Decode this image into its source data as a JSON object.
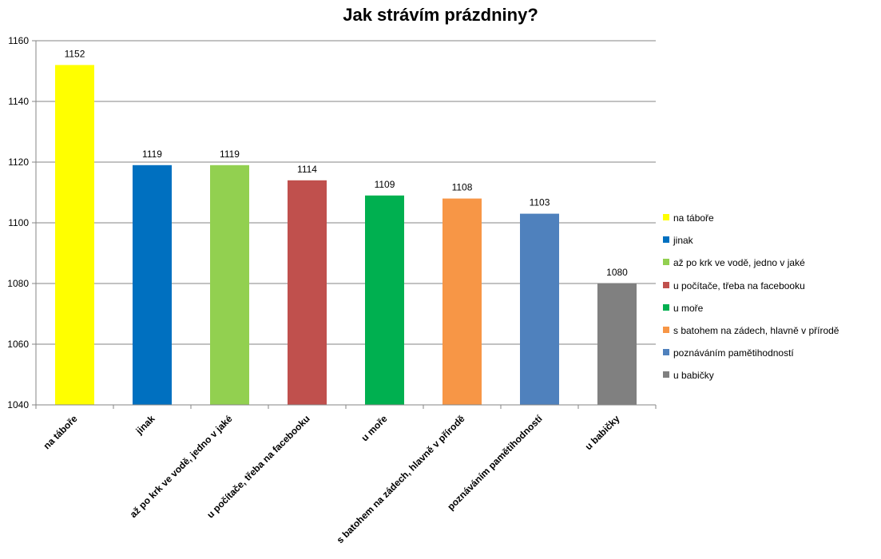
{
  "chart_data": {
    "type": "bar",
    "title": "Jak strávím prázdniny?",
    "xlabel": "",
    "ylabel": "",
    "ylim": [
      1040,
      1160
    ],
    "yticks": [
      1040,
      1060,
      1080,
      1100,
      1120,
      1140,
      1160
    ],
    "grid": true,
    "legend_position": "right",
    "categories": [
      "na táboře",
      "jinak",
      "až po krk ve vodě, jedno v jaké",
      "u počítače, třeba na facebooku",
      "u moře",
      "s batohem na zádech, hlavně v přírodě",
      "poznáváním pamětihodností",
      "u babičky"
    ],
    "values": [
      1152,
      1119,
      1119,
      1114,
      1109,
      1108,
      1103,
      1080
    ],
    "colors": [
      "#ffff00",
      "#0070c0",
      "#92d050",
      "#c0504d",
      "#00b050",
      "#f79646",
      "#4f81bd",
      "#808080"
    ],
    "gridline_color": "#868686",
    "axis_color": "#868686"
  }
}
